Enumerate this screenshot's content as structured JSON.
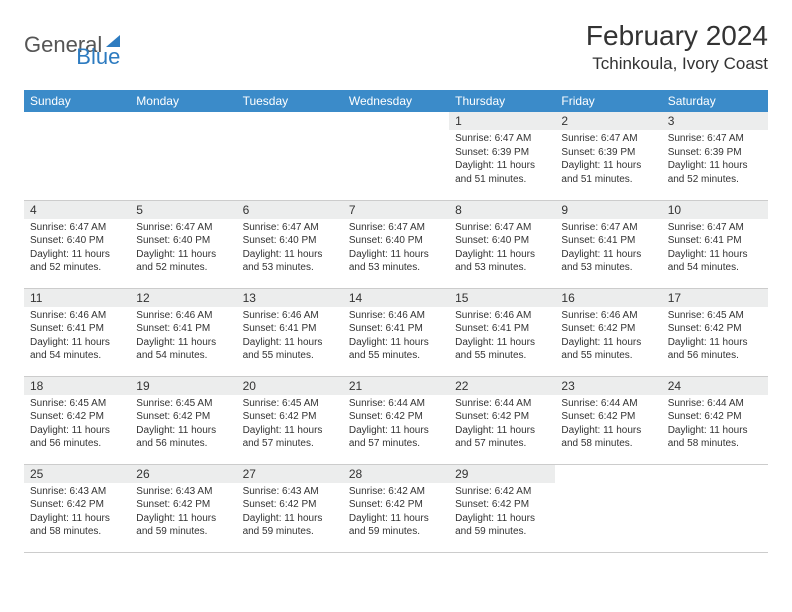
{
  "logo": {
    "text1": "General",
    "text2": "Blue"
  },
  "header": {
    "month": "February 2024",
    "location": "Tchinkoula, Ivory Coast"
  },
  "colors": {
    "header_bg": "#3b8bc9",
    "daynum_bg": "#eceded",
    "text": "#333333",
    "logo_blue": "#2d7bc0",
    "logo_gray": "#555555",
    "border": "#cccccc"
  },
  "dayNames": [
    "Sunday",
    "Monday",
    "Tuesday",
    "Wednesday",
    "Thursday",
    "Friday",
    "Saturday"
  ],
  "weeks": [
    [
      {
        "empty": true
      },
      {
        "empty": true
      },
      {
        "empty": true
      },
      {
        "empty": true
      },
      {
        "day": "1",
        "sunrise": "Sunrise: 6:47 AM",
        "sunset": "Sunset: 6:39 PM",
        "daylight": "Daylight: 11 hours and 51 minutes."
      },
      {
        "day": "2",
        "sunrise": "Sunrise: 6:47 AM",
        "sunset": "Sunset: 6:39 PM",
        "daylight": "Daylight: 11 hours and 51 minutes."
      },
      {
        "day": "3",
        "sunrise": "Sunrise: 6:47 AM",
        "sunset": "Sunset: 6:39 PM",
        "daylight": "Daylight: 11 hours and 52 minutes."
      }
    ],
    [
      {
        "day": "4",
        "sunrise": "Sunrise: 6:47 AM",
        "sunset": "Sunset: 6:40 PM",
        "daylight": "Daylight: 11 hours and 52 minutes."
      },
      {
        "day": "5",
        "sunrise": "Sunrise: 6:47 AM",
        "sunset": "Sunset: 6:40 PM",
        "daylight": "Daylight: 11 hours and 52 minutes."
      },
      {
        "day": "6",
        "sunrise": "Sunrise: 6:47 AM",
        "sunset": "Sunset: 6:40 PM",
        "daylight": "Daylight: 11 hours and 53 minutes."
      },
      {
        "day": "7",
        "sunrise": "Sunrise: 6:47 AM",
        "sunset": "Sunset: 6:40 PM",
        "daylight": "Daylight: 11 hours and 53 minutes."
      },
      {
        "day": "8",
        "sunrise": "Sunrise: 6:47 AM",
        "sunset": "Sunset: 6:40 PM",
        "daylight": "Daylight: 11 hours and 53 minutes."
      },
      {
        "day": "9",
        "sunrise": "Sunrise: 6:47 AM",
        "sunset": "Sunset: 6:41 PM",
        "daylight": "Daylight: 11 hours and 53 minutes."
      },
      {
        "day": "10",
        "sunrise": "Sunrise: 6:47 AM",
        "sunset": "Sunset: 6:41 PM",
        "daylight": "Daylight: 11 hours and 54 minutes."
      }
    ],
    [
      {
        "day": "11",
        "sunrise": "Sunrise: 6:46 AM",
        "sunset": "Sunset: 6:41 PM",
        "daylight": "Daylight: 11 hours and 54 minutes."
      },
      {
        "day": "12",
        "sunrise": "Sunrise: 6:46 AM",
        "sunset": "Sunset: 6:41 PM",
        "daylight": "Daylight: 11 hours and 54 minutes."
      },
      {
        "day": "13",
        "sunrise": "Sunrise: 6:46 AM",
        "sunset": "Sunset: 6:41 PM",
        "daylight": "Daylight: 11 hours and 55 minutes."
      },
      {
        "day": "14",
        "sunrise": "Sunrise: 6:46 AM",
        "sunset": "Sunset: 6:41 PM",
        "daylight": "Daylight: 11 hours and 55 minutes."
      },
      {
        "day": "15",
        "sunrise": "Sunrise: 6:46 AM",
        "sunset": "Sunset: 6:41 PM",
        "daylight": "Daylight: 11 hours and 55 minutes."
      },
      {
        "day": "16",
        "sunrise": "Sunrise: 6:46 AM",
        "sunset": "Sunset: 6:42 PM",
        "daylight": "Daylight: 11 hours and 55 minutes."
      },
      {
        "day": "17",
        "sunrise": "Sunrise: 6:45 AM",
        "sunset": "Sunset: 6:42 PM",
        "daylight": "Daylight: 11 hours and 56 minutes."
      }
    ],
    [
      {
        "day": "18",
        "sunrise": "Sunrise: 6:45 AM",
        "sunset": "Sunset: 6:42 PM",
        "daylight": "Daylight: 11 hours and 56 minutes."
      },
      {
        "day": "19",
        "sunrise": "Sunrise: 6:45 AM",
        "sunset": "Sunset: 6:42 PM",
        "daylight": "Daylight: 11 hours and 56 minutes."
      },
      {
        "day": "20",
        "sunrise": "Sunrise: 6:45 AM",
        "sunset": "Sunset: 6:42 PM",
        "daylight": "Daylight: 11 hours and 57 minutes."
      },
      {
        "day": "21",
        "sunrise": "Sunrise: 6:44 AM",
        "sunset": "Sunset: 6:42 PM",
        "daylight": "Daylight: 11 hours and 57 minutes."
      },
      {
        "day": "22",
        "sunrise": "Sunrise: 6:44 AM",
        "sunset": "Sunset: 6:42 PM",
        "daylight": "Daylight: 11 hours and 57 minutes."
      },
      {
        "day": "23",
        "sunrise": "Sunrise: 6:44 AM",
        "sunset": "Sunset: 6:42 PM",
        "daylight": "Daylight: 11 hours and 58 minutes."
      },
      {
        "day": "24",
        "sunrise": "Sunrise: 6:44 AM",
        "sunset": "Sunset: 6:42 PM",
        "daylight": "Daylight: 11 hours and 58 minutes."
      }
    ],
    [
      {
        "day": "25",
        "sunrise": "Sunrise: 6:43 AM",
        "sunset": "Sunset: 6:42 PM",
        "daylight": "Daylight: 11 hours and 58 minutes."
      },
      {
        "day": "26",
        "sunrise": "Sunrise: 6:43 AM",
        "sunset": "Sunset: 6:42 PM",
        "daylight": "Daylight: 11 hours and 59 minutes."
      },
      {
        "day": "27",
        "sunrise": "Sunrise: 6:43 AM",
        "sunset": "Sunset: 6:42 PM",
        "daylight": "Daylight: 11 hours and 59 minutes."
      },
      {
        "day": "28",
        "sunrise": "Sunrise: 6:42 AM",
        "sunset": "Sunset: 6:42 PM",
        "daylight": "Daylight: 11 hours and 59 minutes."
      },
      {
        "day": "29",
        "sunrise": "Sunrise: 6:42 AM",
        "sunset": "Sunset: 6:42 PM",
        "daylight": "Daylight: 11 hours and 59 minutes."
      },
      {
        "empty": true
      },
      {
        "empty": true
      }
    ]
  ]
}
